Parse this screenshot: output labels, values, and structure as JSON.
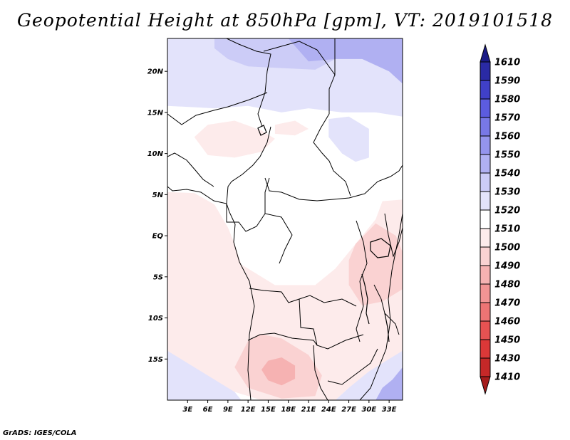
{
  "title": "Geopotential Height at 850hPa [gpm], VT: 2019101518",
  "credit": "GrADS: IGES/COLA",
  "chart_data": {
    "type": "heatmap",
    "title": "Geopotential Height at 850hPa [gpm], VT: 2019101518",
    "variable": "Geopotential Height",
    "level": "850hPa",
    "units": "gpm",
    "valid_time": "2019101518",
    "xlim": [
      0,
      35
    ],
    "ylim": [
      -20,
      24
    ],
    "x_ticks": [
      {
        "value": 3,
        "label": "3E"
      },
      {
        "value": 6,
        "label": "6E"
      },
      {
        "value": 9,
        "label": "9E"
      },
      {
        "value": 12,
        "label": "12E"
      },
      {
        "value": 15,
        "label": "15E"
      },
      {
        "value": 18,
        "label": "18E"
      },
      {
        "value": 21,
        "label": "21E"
      },
      {
        "value": 24,
        "label": "24E"
      },
      {
        "value": 27,
        "label": "27E"
      },
      {
        "value": 30,
        "label": "30E"
      },
      {
        "value": 33,
        "label": "33E"
      }
    ],
    "y_ticks": [
      {
        "value": 20,
        "label": "20N"
      },
      {
        "value": 15,
        "label": "15N"
      },
      {
        "value": 10,
        "label": "10N"
      },
      {
        "value": 5,
        "label": "5N"
      },
      {
        "value": 0,
        "label": "EQ"
      },
      {
        "value": -5,
        "label": "5S"
      },
      {
        "value": -10,
        "label": "10S"
      },
      {
        "value": -15,
        "label": "15S"
      }
    ],
    "colorbar": {
      "orientation": "vertical",
      "extend": "both",
      "labels": [
        1410,
        1430,
        1450,
        1460,
        1470,
        1480,
        1490,
        1500,
        1510,
        1520,
        1530,
        1540,
        1550,
        1560,
        1570,
        1580,
        1590,
        1610
      ],
      "colors": [
        "#a51c1c",
        "#c52828",
        "#dc3838",
        "#e65252",
        "#ed7474",
        "#f29494",
        "#f6b2b2",
        "#fad2d2",
        "#fdebeb",
        "#ffffff",
        "#e3e3fb",
        "#ccccf7",
        "#b0b0f2",
        "#9494ed",
        "#7878e6",
        "#5c5cdf",
        "#4040c8",
        "#2a2aa5",
        "#1a1a86"
      ]
    },
    "regions": [
      {
        "name": "north-bg",
        "value": 1525,
        "points": [
          [
            0,
            24
          ],
          [
            35,
            24
          ],
          [
            35,
            14.5
          ],
          [
            31,
            15
          ],
          [
            26,
            15
          ],
          [
            21,
            15.5
          ],
          [
            17,
            15
          ],
          [
            12,
            15.8
          ],
          [
            7,
            15.5
          ],
          [
            0,
            15.8
          ]
        ]
      },
      {
        "name": "north-sahara",
        "value": 1532,
        "points": [
          [
            7,
            24
          ],
          [
            25,
            24
          ],
          [
            25,
            21.5
          ],
          [
            22,
            20.2
          ],
          [
            17,
            20.4
          ],
          [
            12,
            20.6
          ],
          [
            9,
            21.5
          ],
          [
            7,
            22.8
          ]
        ]
      },
      {
        "name": "northeast-high",
        "value": 1547,
        "points": [
          [
            18,
            24
          ],
          [
            35,
            24
          ],
          [
            35,
            18.5
          ],
          [
            33,
            20
          ],
          [
            29,
            21.5
          ],
          [
            25,
            21.5
          ],
          [
            21,
            21.2
          ]
        ]
      },
      {
        "name": "sahel-low",
        "value": 1507,
        "points": [
          [
            4,
            12
          ],
          [
            6,
            13.5
          ],
          [
            10,
            14
          ],
          [
            14,
            12.8
          ],
          [
            16,
            11.8
          ],
          [
            14,
            10.2
          ],
          [
            10,
            9.5
          ],
          [
            6,
            9.8
          ]
        ]
      },
      {
        "name": "chad-low",
        "value": 1508,
        "points": [
          [
            16,
            13.5
          ],
          [
            19,
            14
          ],
          [
            21,
            13
          ],
          [
            19,
            12.2
          ],
          [
            16,
            12.4
          ]
        ]
      },
      {
        "name": "eastern-highland",
        "value": 1525,
        "points": [
          [
            24,
            14.2
          ],
          [
            27,
            14.5
          ],
          [
            30,
            13
          ],
          [
            30,
            9.5
          ],
          [
            28,
            9
          ],
          [
            26,
            10
          ],
          [
            24,
            12
          ]
        ]
      },
      {
        "name": "south-bg",
        "value": 1505,
        "points": [
          [
            0,
            5.3
          ],
          [
            4,
            5.2
          ],
          [
            7,
            3.8
          ],
          [
            9,
            1
          ],
          [
            10,
            -1
          ],
          [
            11,
            -3.5
          ],
          [
            13,
            -4.5
          ],
          [
            16,
            -6
          ],
          [
            22,
            -6
          ],
          [
            25,
            -4
          ],
          [
            28,
            -1
          ],
          [
            31,
            2
          ],
          [
            32,
            4.2
          ],
          [
            35,
            4.4
          ],
          [
            35,
            -16
          ],
          [
            30,
            -17
          ],
          [
            27,
            -18.5
          ],
          [
            25,
            -20
          ],
          [
            14,
            -20
          ],
          [
            8,
            -18.5
          ],
          [
            4,
            -17
          ],
          [
            0,
            -16
          ]
        ]
      },
      {
        "name": "namibia-low",
        "value": 1495,
        "points": [
          [
            12,
            -12.8
          ],
          [
            14,
            -12
          ],
          [
            17,
            -12.5
          ],
          [
            21,
            -14.5
          ],
          [
            23,
            -17
          ],
          [
            22,
            -19.5
          ],
          [
            17,
            -19.8
          ],
          [
            12,
            -18.5
          ],
          [
            10,
            -16
          ]
        ]
      },
      {
        "name": "namibia-core",
        "value": 1488,
        "points": [
          [
            15,
            -15.2
          ],
          [
            17,
            -14.8
          ],
          [
            19,
            -15.8
          ],
          [
            19,
            -17.4
          ],
          [
            17,
            -18.2
          ],
          [
            15,
            -17.6
          ],
          [
            14,
            -16.3
          ]
        ]
      },
      {
        "name": "east-lakes-low",
        "value": 1495,
        "points": [
          [
            28,
            -1
          ],
          [
            31,
            1.5
          ],
          [
            34,
            0
          ],
          [
            35,
            -2
          ],
          [
            35,
            -6.5
          ],
          [
            32,
            -8
          ],
          [
            29,
            -8.5
          ],
          [
            27,
            -6
          ],
          [
            27,
            -3
          ]
        ]
      },
      {
        "name": "southwest-high",
        "value": 1522,
        "points": [
          [
            0,
            -14
          ],
          [
            3,
            -15.5
          ],
          [
            7,
            -17.5
          ],
          [
            10,
            -19
          ],
          [
            11,
            -20
          ],
          [
            0,
            -20
          ]
        ]
      },
      {
        "name": "southeast-high",
        "value": 1527,
        "points": [
          [
            35,
            -14
          ],
          [
            33,
            -15
          ],
          [
            30,
            -16.5
          ],
          [
            27,
            -18.5
          ],
          [
            25,
            -20
          ],
          [
            35,
            -20
          ]
        ]
      },
      {
        "name": "southeast-core",
        "value": 1541,
        "points": [
          [
            35,
            -16
          ],
          [
            33.5,
            -17.5
          ],
          [
            32,
            -18.5
          ],
          [
            31,
            -20
          ],
          [
            35,
            -20
          ]
        ]
      }
    ]
  }
}
